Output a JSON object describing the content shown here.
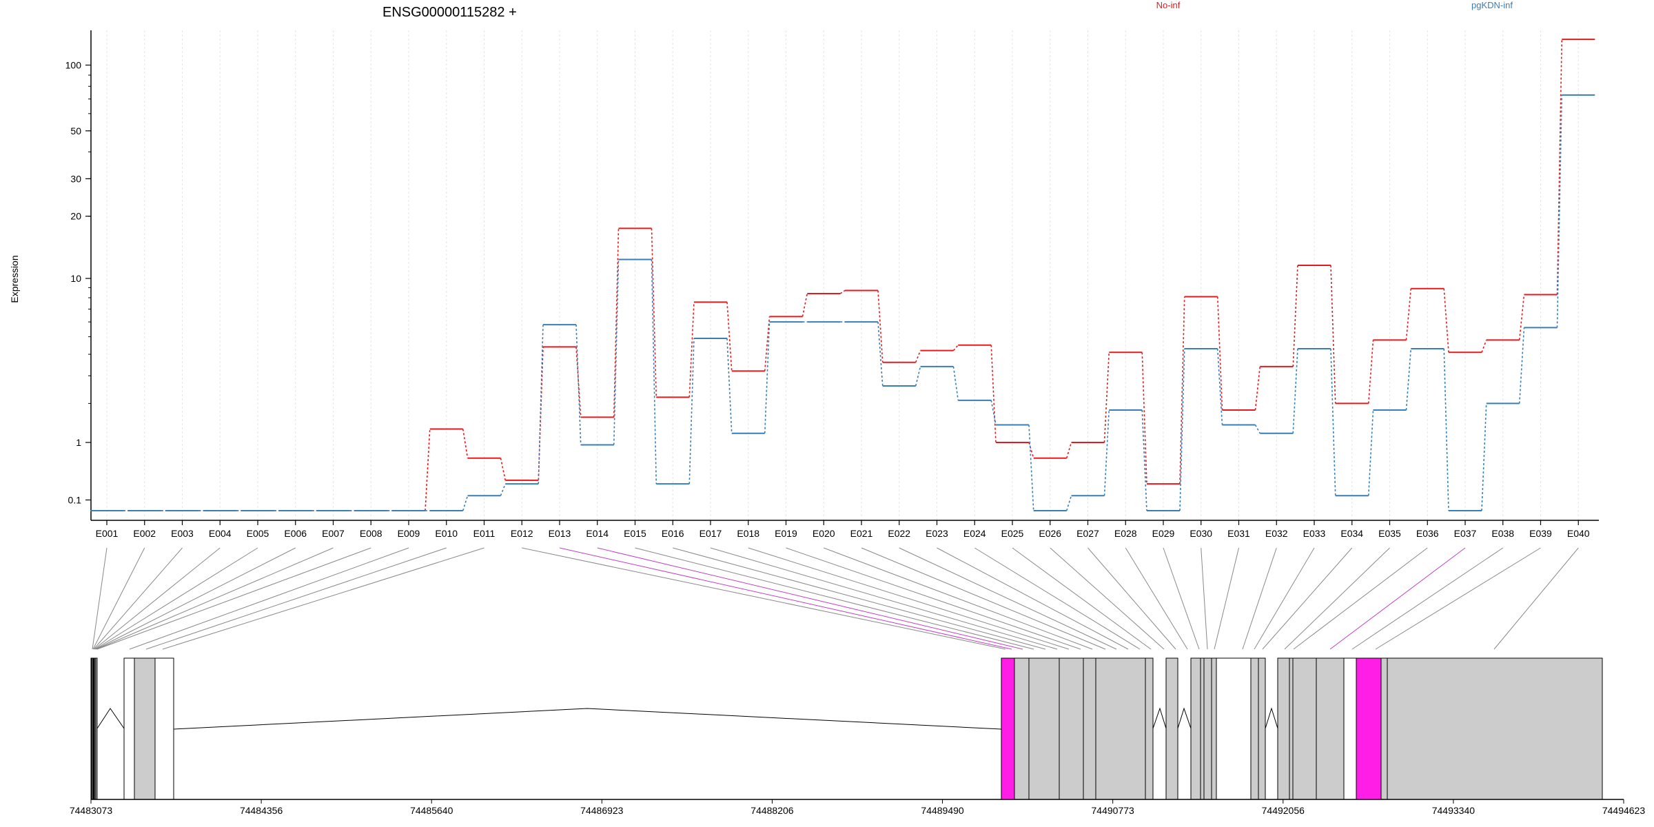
{
  "chart_data": {
    "type": "line",
    "title": "ENSG00000115282 +",
    "ylabel": "Expression",
    "y_scale": "log",
    "y_ticks": [
      "100",
      "50",
      "30",
      "20",
      "10",
      "1",
      "0.1"
    ],
    "categories": [
      "E001",
      "E002",
      "E003",
      "E004",
      "E005",
      "E006",
      "E007",
      "E008",
      "E009",
      "E010",
      "E011",
      "E012",
      "E013",
      "E014",
      "E015",
      "E016",
      "E017",
      "E018",
      "E019",
      "E020",
      "E021",
      "E022",
      "E023",
      "E024",
      "E025",
      "E026",
      "E027",
      "E028",
      "E029",
      "E030",
      "E031",
      "E032",
      "E033",
      "E034",
      "E035",
      "E036",
      "E037",
      "E038",
      "E039",
      "E040"
    ],
    "series": [
      {
        "name": "No-inf",
        "color": "#e41a1c",
        "values": [
          0,
          0,
          0,
          0,
          0,
          0,
          0,
          0,
          0,
          1.3,
          0.7,
          0.35,
          4.4,
          1.6,
          17.5,
          2.2,
          7.6,
          3.2,
          6.4,
          8.4,
          8.7,
          3.6,
          4.2,
          4.5,
          1,
          0.7,
          1,
          4.1,
          0.3,
          8.1,
          1.8,
          3.4,
          11.6,
          2.0,
          4.8,
          8.9,
          4.1,
          4.8,
          8.3,
          131
        ]
      },
      {
        "name": "pgKDN-inf",
        "color": "#377eb8",
        "values": [
          0,
          0,
          0,
          0,
          0,
          0,
          0,
          0,
          0,
          0,
          0.15,
          0.3,
          5.8,
          0.95,
          12.4,
          0.3,
          4.9,
          1.2,
          6.0,
          6.0,
          6.0,
          2.6,
          3.4,
          2.1,
          1.4,
          0,
          0.15,
          1.8,
          0,
          4.3,
          1.4,
          1.2,
          4.3,
          0.15,
          1.8,
          4.3,
          0,
          2.0,
          5.6,
          73
        ]
      }
    ]
  },
  "gene_model": {
    "coordinates": [
      "74483073",
      "74484356",
      "74485640",
      "74486923",
      "74488206",
      "74489490",
      "74490773",
      "74492056",
      "74493340",
      "74494623"
    ],
    "highlight_color": "#ff1ee6",
    "exon_color": "#cccccc"
  }
}
